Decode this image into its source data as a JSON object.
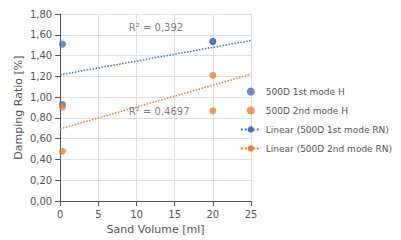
{
  "chart_data": {
    "type": "scatter",
    "xlabel": "Sand Volume [ml]",
    "ylabel": "Damping Ratio [%]",
    "xlim": [
      0,
      25
    ],
    "ylim": [
      0.0,
      1.8
    ],
    "xticks": [
      0,
      5,
      10,
      15,
      20,
      25
    ],
    "yticks": [
      {
        "value": 0.0,
        "label": "0,00"
      },
      {
        "value": 0.2,
        "label": "0,20"
      },
      {
        "value": 0.4,
        "label": "0,40"
      },
      {
        "value": 0.6,
        "label": "0,60"
      },
      {
        "value": 0.8,
        "label": "0,80"
      },
      {
        "value": 1.0,
        "label": "1,00"
      },
      {
        "value": 1.2,
        "label": "1,20"
      },
      {
        "value": 1.4,
        "label": "1,40"
      },
      {
        "value": 1.6,
        "label": "1,60"
      },
      {
        "value": 1.8,
        "label": "1,80"
      }
    ],
    "grid": true,
    "legend": "right",
    "series": [
      {
        "name": "500D 1st mode H",
        "type": "scatter",
        "marker": "circle",
        "color": "#4472C4",
        "x": [
          0.3,
          0.3,
          20,
          20
        ],
        "values": [
          1.51,
          0.93,
          1.535,
          1.535
        ]
      },
      {
        "name": "500D 2nd mode H",
        "type": "scatter",
        "marker": "circle",
        "color": "#ED7D31",
        "x": [
          0.3,
          0.3,
          20,
          20
        ],
        "values": [
          0.905,
          0.48,
          0.87,
          1.21
        ]
      },
      {
        "name": "Linear (500D 1st mode RN)",
        "type": "line",
        "line_style": "dotted",
        "color": "#4472C4",
        "x": [
          0,
          25
        ],
        "values": [
          1.215,
          1.545
        ]
      },
      {
        "name": "Linear (500D 2nd mode RN)",
        "type": "line",
        "line_style": "dotted",
        "color": "#ED7D31",
        "x": [
          0,
          25
        ],
        "values": [
          0.695,
          1.22
        ]
      }
    ],
    "annotations": [
      {
        "text": "R² = 0,392",
        "x": 9.0,
        "y": 1.67
      },
      {
        "text": "R² = 0,4697",
        "x": 9.0,
        "y": 0.865
      }
    ]
  }
}
